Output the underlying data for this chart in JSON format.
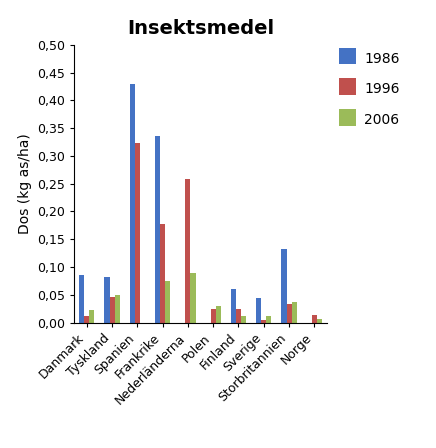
{
  "title": "Insektsmedel",
  "ylabel": "Dos (kg as/ha)",
  "categories": [
    "Danmark",
    "Tyskland",
    "Spanien",
    "Frankrike",
    "Nederländerna",
    "Polen",
    "Finland",
    "Sverige",
    "Storbritannien",
    "Norge"
  ],
  "series": {
    "1986": [
      0.085,
      0.082,
      0.43,
      0.335,
      0.0,
      0.0,
      0.06,
      0.045,
      0.132,
      0.0
    ],
    "1996": [
      0.012,
      0.046,
      0.323,
      0.178,
      0.258,
      0.025,
      0.024,
      0.005,
      0.034,
      0.013
    ],
    "2006": [
      0.022,
      0.049,
      0.0,
      0.074,
      0.09,
      0.03,
      0.011,
      0.011,
      0.037,
      0.006
    ]
  },
  "colors": {
    "1986": "#4472C4",
    "1996": "#C0504D",
    "2006": "#9BBB59"
  },
  "ylim": [
    0,
    0.5
  ],
  "yticks": [
    0.0,
    0.05,
    0.1,
    0.15,
    0.2,
    0.25,
    0.3,
    0.35,
    0.4,
    0.45,
    0.5
  ],
  "ytick_labels": [
    "0,00",
    "0,05",
    "0,10",
    "0,15",
    "0,20",
    "0,25",
    "0,30",
    "0,35",
    "0,40",
    "0,45",
    "0,50"
  ],
  "title_fontsize": 14,
  "legend_fontsize": 10,
  "axis_label_fontsize": 10,
  "tick_fontsize": 9,
  "bar_width": 0.2
}
